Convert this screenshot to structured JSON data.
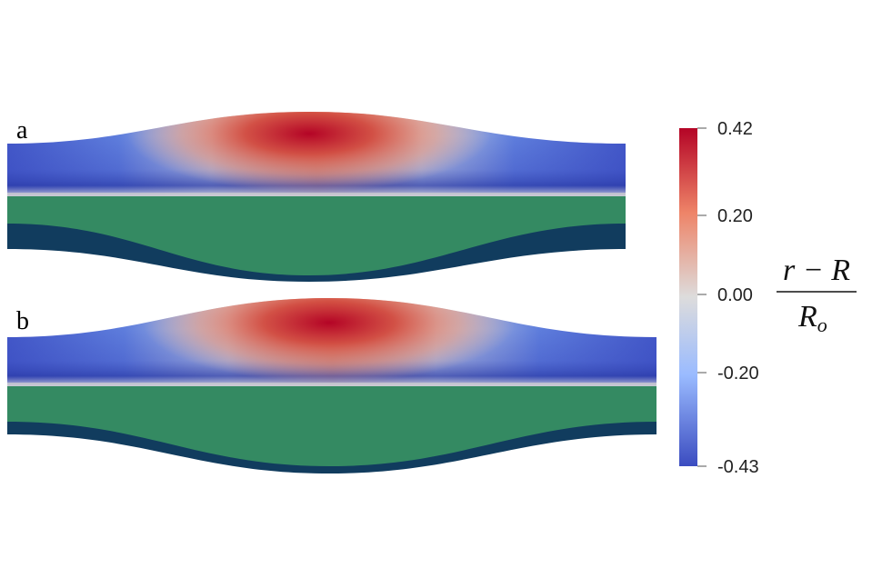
{
  "panels": [
    {
      "label": "a"
    },
    {
      "label": "b"
    }
  ],
  "colorbar": {
    "colormap": "cool-to-warm",
    "ticks": [
      "0.42",
      "0.20",
      "0.00",
      "-0.20",
      "-0.43"
    ],
    "tick_values": [
      0.42,
      0.2,
      0.0,
      -0.2,
      -0.43
    ],
    "range": [
      -0.43,
      0.42
    ],
    "label": {
      "numerator": "r − R",
      "denominator_main": "R",
      "denominator_sub": "o"
    }
  },
  "colors": {
    "high": "#b40426",
    "mid": "#dddcdc",
    "low": "#3b4cc0",
    "inner_layer": "#348a62",
    "outer_layer": "#113c5e"
  }
}
